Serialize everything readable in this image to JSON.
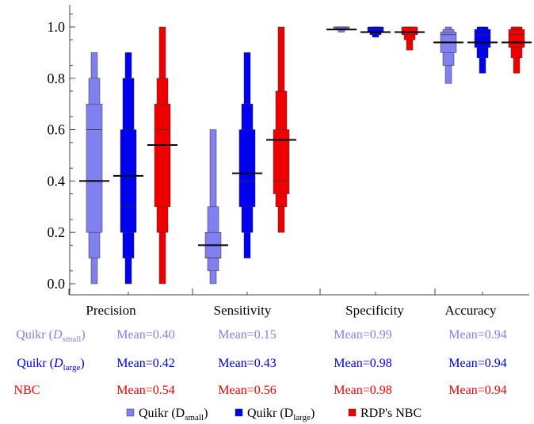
{
  "chart_data": {
    "type": "box",
    "title": "",
    "xlabel": "",
    "ylabel": "",
    "ylim": [
      -0.05,
      1.07
    ],
    "yticks": [
      "0.0",
      "0.2",
      "0.4",
      "0.6",
      "0.8",
      "1.0"
    ],
    "categories": [
      "Precision",
      "Sensitivity",
      "Specificity",
      "Accuracy"
    ],
    "series": [
      {
        "name": "Quikr (D_small)",
        "legend_base": "Quikr (D",
        "legend_sub": "small",
        "legend_close": ")",
        "color": "#8080ee",
        "row_label_base": "Quikr (",
        "row_label_italic": "D",
        "row_label_sub": "small",
        "row_label_close": ")",
        "means": [
          0.4,
          0.15,
          0.99,
          0.94
        ],
        "mean_labels": [
          "Mean=0.40",
          "Mean=0.15",
          "Mean=0.99",
          "Mean=0.94"
        ],
        "distributions": [
          {
            "min": 0.0,
            "q1": 0.1,
            "q1b": 0.2,
            "median": 0.6,
            "q3b": 0.7,
            "q3": 0.8,
            "max": 0.9
          },
          {
            "min": 0.0,
            "q1": 0.05,
            "q1b": 0.1,
            "median": 0.1,
            "q3b": 0.2,
            "q3": 0.3,
            "max": 0.6
          },
          {
            "min": 0.98,
            "q1": 0.99,
            "q1b": 0.995,
            "median": 1.0,
            "q3b": 1.0,
            "q3": 1.0,
            "max": 1.0
          },
          {
            "min": 0.78,
            "q1": 0.85,
            "q1b": 0.9,
            "median": 0.97,
            "q3b": 0.98,
            "q3": 0.99,
            "max": 1.0
          }
        ]
      },
      {
        "name": "Quikr (D_large)",
        "legend_base": "Quikr (D",
        "legend_sub": "large",
        "legend_close": ")",
        "color": "#0000ee",
        "row_label_base": "Quikr (",
        "row_label_italic": "D",
        "row_label_sub": "large",
        "row_label_close": ")",
        "means": [
          0.42,
          0.43,
          0.98,
          0.94
        ],
        "mean_labels": [
          "Mean=0.42",
          "Mean=0.43",
          "Mean=0.98",
          "Mean=0.94"
        ],
        "distributions": [
          {
            "min": 0.0,
            "q1": 0.1,
            "q1b": 0.2,
            "median": 0.3,
            "q3b": 0.6,
            "q3": 0.8,
            "max": 0.9
          },
          {
            "min": 0.1,
            "q1": 0.2,
            "q1b": 0.3,
            "median": 0.4,
            "q3b": 0.6,
            "q3": 0.7,
            "max": 0.9
          },
          {
            "min": 0.96,
            "q1": 0.97,
            "q1b": 0.98,
            "median": 0.99,
            "q3b": 1.0,
            "q3": 1.0,
            "max": 1.0
          },
          {
            "min": 0.82,
            "q1": 0.88,
            "q1b": 0.92,
            "median": 0.97,
            "q3b": 0.99,
            "q3": 1.0,
            "max": 1.0
          }
        ]
      },
      {
        "name": "RDP's NBC",
        "legend_base": "RDP's NBC",
        "legend_sub": "",
        "legend_close": "",
        "color": "#ee0000",
        "row_label_base": "NBC",
        "row_label_italic": "",
        "row_label_sub": "",
        "row_label_close": "",
        "means": [
          0.54,
          0.56,
          0.98,
          0.94
        ],
        "mean_labels": [
          "Mean=0.54",
          "Mean=0.56",
          "Mean=0.98",
          "Mean=0.94"
        ],
        "distributions": [
          {
            "min": 0.0,
            "q1": 0.2,
            "q1b": 0.3,
            "median": 0.6,
            "q3b": 0.7,
            "q3": 0.8,
            "max": 1.0
          },
          {
            "min": 0.2,
            "q1": 0.3,
            "q1b": 0.35,
            "median": 0.4,
            "q3b": 0.6,
            "q3": 0.75,
            "max": 1.0
          },
          {
            "min": 0.91,
            "q1": 0.95,
            "q1b": 0.97,
            "median": 0.98,
            "q3b": 1.0,
            "q3": 1.0,
            "max": 1.0
          },
          {
            "min": 0.82,
            "q1": 0.88,
            "q1b": 0.92,
            "median": 0.97,
            "q3b": 0.99,
            "q3": 1.0,
            "max": 1.0
          }
        ]
      }
    ],
    "grid": false,
    "legend_placement": "bottom-center"
  }
}
